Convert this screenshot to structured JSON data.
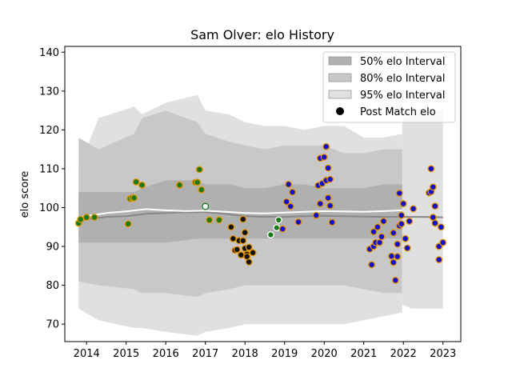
{
  "chart_data": {
    "type": "scatter",
    "title": "Sam Olver: elo History",
    "xlabel": "",
    "ylabel": "elo score",
    "xlim": [
      2013.45,
      2023.45
    ],
    "ylim": [
      65.5,
      141.5
    ],
    "xticks": [
      2014,
      2015,
      2016,
      2017,
      2018,
      2019,
      2020,
      2021,
      2022,
      2023
    ],
    "yticks": [
      70,
      80,
      90,
      100,
      110,
      120,
      130,
      140
    ],
    "grid": false,
    "legend_position": "top-right",
    "legend": [
      {
        "label": "50% elo Interval",
        "kind": "band",
        "color": "#b0b0b0"
      },
      {
        "label": "80% elo Interval",
        "kind": "band",
        "color": "#c8c8c8"
      },
      {
        "label": "95% elo Interval",
        "kind": "band",
        "color": "#e0e0e0"
      },
      {
        "label": "Post Match elo",
        "kind": "marker",
        "color": "#000000"
      }
    ],
    "band_colors": {
      "b95": "#e0e0e0",
      "b80": "#c8c8c8",
      "b50": "#b0b0b0"
    },
    "bands": {
      "x": [
        2013.8,
        2014.3,
        2015.2,
        2015.4,
        2016.0,
        2016.8,
        2017.0,
        2017.6,
        2018.0,
        2018.5,
        2019.0,
        2019.5,
        2020.0,
        2020.5,
        2021.0,
        2021.5,
        2021.97
      ],
      "b95_upper": [
        110,
        123,
        126,
        124,
        127,
        129,
        125,
        124,
        122,
        121,
        121,
        120,
        121,
        121,
        118,
        118,
        119
      ],
      "b95_lower": [
        74,
        71,
        69,
        69,
        68,
        67,
        68,
        69,
        70,
        70,
        70,
        70,
        70,
        70,
        71,
        72,
        73
      ],
      "b80_upper": [
        118,
        115,
        119,
        123,
        125,
        122,
        119,
        117,
        116,
        115,
        116,
        116,
        116,
        114,
        114,
        115,
        115
      ],
      "b80_lower": [
        81,
        80,
        79,
        78,
        78,
        77,
        78,
        79,
        80,
        80,
        80,
        80,
        80,
        80,
        79,
        78,
        78
      ],
      "b50_upper": [
        104,
        104,
        104,
        105,
        107,
        107,
        106,
        106,
        105,
        105,
        106,
        106,
        105,
        105,
        105,
        106,
        106
      ],
      "b50_lower": [
        91,
        91,
        91,
        91,
        91,
        92,
        92,
        92,
        92,
        92,
        92,
        92,
        92,
        92,
        92,
        92,
        92
      ]
    },
    "band_tail": {
      "x": [
        2021.97,
        2022.2,
        2022.5,
        2022.8,
        2023.0
      ],
      "b95_upper": [
        123,
        124,
        125,
        125,
        125
      ],
      "b95_lower": [
        75,
        74,
        74,
        74,
        74
      ]
    },
    "mean_line": {
      "color": "#888888",
      "x": [
        2013.8,
        2014.5,
        2015.0,
        2015.5,
        2016.0,
        2016.5,
        2017.0,
        2017.5,
        2018.0,
        2018.5,
        2019.0,
        2019.5,
        2020.0,
        2020.5,
        2021.0,
        2021.5,
        2022.0,
        2022.5,
        2023.0
      ],
      "y": [
        96.8,
        97.6,
        97.8,
        98.4,
        98.6,
        98.8,
        98.8,
        98.4,
        97.8,
        97.6,
        97.6,
        97.8,
        97.9,
        97.8,
        97.7,
        97.6,
        97.6,
        97.6,
        97.5
      ]
    },
    "white_line": {
      "color": "#ffffff",
      "x": [
        2013.8,
        2014.5,
        2015.0,
        2015.5,
        2016.0,
        2016.5,
        2017.0,
        2017.5,
        2018.0,
        2018.5,
        2019.0,
        2019.5,
        2020.0,
        2020.5,
        2021.0,
        2021.5,
        2021.97
      ],
      "y": [
        97.5,
        98.6,
        99.0,
        99.6,
        99.3,
        99.1,
        99.2,
        98.9,
        98.6,
        98.5,
        98.7,
        98.9,
        99.1,
        99.0,
        98.9,
        99.1,
        99.3
      ]
    },
    "series": [
      {
        "face": "#1a7a1a",
        "edge": "#e69500",
        "points": [
          [
            2013.8,
            96.0
          ],
          [
            2013.85,
            97.0
          ],
          [
            2014.0,
            97.5
          ],
          [
            2014.2,
            97.5
          ],
          [
            2015.05,
            95.8
          ],
          [
            2015.1,
            102.3
          ],
          [
            2015.15,
            102.5
          ],
          [
            2015.2,
            102.5
          ],
          [
            2015.25,
            106.6
          ],
          [
            2015.4,
            105.8
          ],
          [
            2016.35,
            105.8
          ],
          [
            2016.75,
            106.5
          ],
          [
            2016.8,
            106.5
          ],
          [
            2016.85,
            109.8
          ],
          [
            2016.9,
            104.6
          ],
          [
            2017.1,
            96.8
          ],
          [
            2017.35,
            96.8
          ]
        ]
      },
      {
        "face": "#1a7a1a",
        "edge": "#ffffff",
        "points": [
          [
            2018.65,
            93.0
          ],
          [
            2018.8,
            94.8
          ],
          [
            2018.85,
            96.8
          ]
        ]
      },
      {
        "face": "#ffffff",
        "edge": "#1a7a1a",
        "points": [
          [
            2017.0,
            100.3
          ]
        ]
      },
      {
        "face": "#111111",
        "edge": "#e69500",
        "points": [
          [
            2017.65,
            95.0
          ],
          [
            2017.7,
            92.0
          ],
          [
            2017.75,
            89.0
          ],
          [
            2017.8,
            89.2
          ],
          [
            2017.85,
            91.5
          ],
          [
            2017.9,
            87.8
          ],
          [
            2017.95,
            97.0
          ],
          [
            2017.95,
            91.5
          ],
          [
            2018.0,
            89.5
          ],
          [
            2018.0,
            93.6
          ],
          [
            2018.05,
            88.0
          ],
          [
            2018.05,
            87.4
          ],
          [
            2018.1,
            86.0
          ],
          [
            2018.1,
            89.8
          ],
          [
            2018.2,
            88.4
          ]
        ]
      },
      {
        "face": "#1010cc",
        "edge": "#e69500",
        "points": [
          [
            2018.95,
            94.5
          ],
          [
            2019.05,
            101.5
          ],
          [
            2019.1,
            106.0
          ],
          [
            2019.15,
            100.3
          ],
          [
            2019.2,
            104.0
          ],
          [
            2019.35,
            96.3
          ],
          [
            2019.8,
            98.0
          ],
          [
            2019.85,
            105.7
          ],
          [
            2019.9,
            112.7
          ],
          [
            2019.9,
            101.0
          ],
          [
            2019.95,
            106.2
          ],
          [
            2020.0,
            113.0
          ],
          [
            2020.05,
            115.7
          ],
          [
            2020.05,
            107.0
          ],
          [
            2020.1,
            110.2
          ],
          [
            2020.1,
            102.5
          ],
          [
            2020.15,
            100.5
          ],
          [
            2020.15,
            107.3
          ],
          [
            2020.2,
            96.2
          ],
          [
            2021.15,
            89.3
          ],
          [
            2021.2,
            85.3
          ],
          [
            2021.25,
            93.8
          ],
          [
            2021.25,
            90.0
          ],
          [
            2021.3,
            91.0
          ],
          [
            2021.35,
            95.0
          ],
          [
            2021.4,
            91.0
          ],
          [
            2021.45,
            92.5
          ],
          [
            2021.5,
            96.5
          ],
          [
            2021.7,
            87.5
          ],
          [
            2021.75,
            93.5
          ],
          [
            2021.75,
            85.9
          ],
          [
            2021.8,
            81.3
          ],
          [
            2021.85,
            87.4
          ],
          [
            2021.85,
            90.6
          ],
          [
            2021.9,
            95.3
          ],
          [
            2021.9,
            103.7
          ],
          [
            2021.95,
            98.0
          ],
          [
            2021.95,
            95.8
          ],
          [
            2022.0,
            101.0
          ],
          [
            2022.05,
            92.0
          ],
          [
            2022.1,
            89.6
          ],
          [
            2022.15,
            96.5
          ],
          [
            2022.25,
            99.7
          ],
          [
            2022.65,
            103.8
          ],
          [
            2022.7,
            104.1
          ],
          [
            2022.7,
            110.0
          ],
          [
            2022.75,
            105.3
          ],
          [
            2022.75,
            97.5
          ],
          [
            2022.8,
            100.4
          ],
          [
            2022.8,
            96.0
          ],
          [
            2022.9,
            90.0
          ],
          [
            2022.9,
            86.6
          ],
          [
            2022.95,
            95.0
          ],
          [
            2023.0,
            91.0
          ]
        ]
      }
    ]
  }
}
